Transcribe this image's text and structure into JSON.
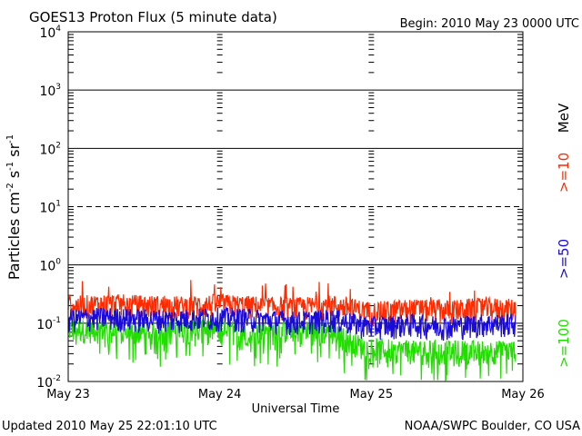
{
  "chart_data": {
    "type": "line",
    "title": "GOES13 Proton Flux (5 minute data)",
    "begin_label": "Begin: 2010 May 23 0000 UTC",
    "xlabel": "Universal Time",
    "ylabel_parts": [
      "Particles cm",
      "-2",
      "s",
      "-1",
      "sr",
      "-1"
    ],
    "updated_label": "Updated 2010 May 25 22:01:10 UTC",
    "credit_label": "NOAA/SWPC Boulder, CO USA",
    "unit_label": "MeV",
    "yscale": "log",
    "ylim": [
      0.01,
      10000
    ],
    "xlim": [
      "May 23",
      "May 26"
    ],
    "x_ticks": [
      "May 23",
      "May 24",
      "May 25",
      "May 26"
    ],
    "y_ticks": [
      {
        "base": "10",
        "exp": "-2"
      },
      {
        "base": "10",
        "exp": "-1"
      },
      {
        "base": "10",
        "exp": "0"
      },
      {
        "base": "10",
        "exp": "1"
      },
      {
        "base": "10",
        "exp": "2"
      },
      {
        "base": "10",
        "exp": "3"
      },
      {
        "base": "10",
        "exp": "4"
      }
    ],
    "reference_lines": [
      {
        "value": 1000,
        "style": "solid"
      },
      {
        "value": 100,
        "style": "solid"
      },
      {
        "value": 10,
        "style": "dashed"
      },
      {
        "value": 1,
        "style": "solid"
      },
      {
        "value": 0.1,
        "style": "solid"
      }
    ],
    "series": [
      {
        "name": ">=10",
        "color": "#ff2a00",
        "x_days": [
          0,
          0.25,
          0.5,
          0.75,
          1.0,
          1.25,
          1.5,
          1.75,
          2.0,
          2.25,
          2.5,
          2.75,
          2.95
        ],
        "values": [
          0.2,
          0.22,
          0.21,
          0.2,
          0.22,
          0.2,
          0.19,
          0.21,
          0.16,
          0.18,
          0.17,
          0.19,
          0.18
        ]
      },
      {
        "name": ">=50",
        "color": "#1a0bd9",
        "x_days": [
          0,
          0.25,
          0.5,
          0.75,
          1.0,
          1.25,
          1.5,
          1.75,
          2.0,
          2.25,
          2.5,
          2.75,
          2.95
        ],
        "values": [
          0.12,
          0.13,
          0.12,
          0.12,
          0.13,
          0.12,
          0.11,
          0.12,
          0.09,
          0.1,
          0.09,
          0.1,
          0.1
        ]
      },
      {
        "name": ">=100",
        "color": "#22dd00",
        "x_days": [
          0,
          0.25,
          0.5,
          0.75,
          1.0,
          1.25,
          1.5,
          1.75,
          1.95,
          2.25,
          2.5,
          2.75,
          2.95
        ],
        "values": [
          0.08,
          0.08,
          0.07,
          0.08,
          0.08,
          0.07,
          0.08,
          0.07,
          0.04,
          0.035,
          0.035,
          0.035,
          0.035
        ]
      }
    ]
  }
}
